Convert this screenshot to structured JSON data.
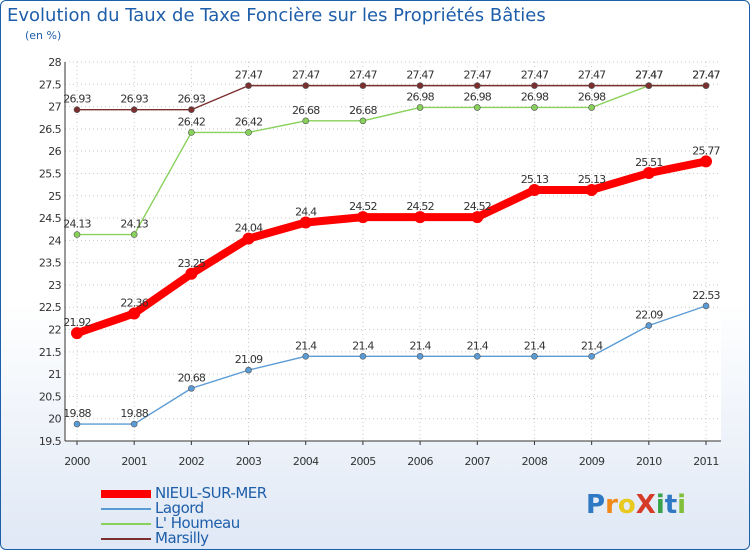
{
  "title": "Evolution du Taux de Taxe Foncière sur les Propriétés Bâties",
  "subtitle": "(en %)",
  "logo": {
    "text": "ProXiti",
    "letters": [
      {
        "ch": "P",
        "color": "#2f78c4"
      },
      {
        "ch": "r",
        "color": "#f08a1c"
      },
      {
        "ch": "o",
        "color": "#e8c91f"
      },
      {
        "ch": "X",
        "color": "#d63b2a"
      },
      {
        "ch": "i",
        "color": "#3aa34a"
      },
      {
        "ch": "t",
        "color": "#2f78c4"
      },
      {
        "ch": "i",
        "color": "#7fbf3a"
      }
    ]
  },
  "chart_data": {
    "type": "line",
    "title": "Evolution du Taux de Taxe Foncière sur les Propriétés Bâties",
    "ylabel": "(en %)",
    "xlabel": "",
    "x": [
      "2000",
      "2001",
      "2002",
      "2003",
      "2004",
      "2005",
      "2006",
      "2007",
      "2008",
      "2009",
      "2010",
      "2011"
    ],
    "ylim": [
      19.5,
      28
    ],
    "yticks": [
      "19.5",
      "20",
      "20.5",
      "21",
      "21.5",
      "22",
      "22.5",
      "23",
      "23.5",
      "24",
      "24.5",
      "25",
      "25.5",
      "26",
      "26.5",
      "27",
      "27.5",
      "28"
    ],
    "grid": true,
    "legend_position": "bottom-left",
    "series": [
      {
        "name": "NIEUL-SUR-MER",
        "color": "#ff0000",
        "emphasis": true,
        "values": [
          21.92,
          22.36,
          23.25,
          24.04,
          24.4,
          24.52,
          24.52,
          24.52,
          25.13,
          25.13,
          25.51,
          25.77
        ],
        "labels": [
          "21.92",
          "22.36",
          "23.25",
          "24.04",
          "24.4",
          "24.52",
          "24.52",
          "24.52",
          "25.13",
          "25.13",
          "25.51",
          "25.77"
        ]
      },
      {
        "name": "Lagord",
        "color": "#5b9bd5",
        "emphasis": false,
        "values": [
          19.88,
          19.88,
          20.68,
          21.09,
          21.4,
          21.4,
          21.4,
          21.4,
          21.4,
          21.4,
          22.09,
          22.53
        ],
        "labels": [
          "19.88",
          "19.88",
          "20.68",
          "21.09",
          "21.4",
          "21.4",
          "21.4",
          "21.4",
          "21.4",
          "21.4",
          "22.09",
          "22.53"
        ]
      },
      {
        "name": "L' Houmeau",
        "color": "#88d15a",
        "emphasis": false,
        "values": [
          24.13,
          24.13,
          26.42,
          26.42,
          26.68,
          26.68,
          26.98,
          26.98,
          26.98,
          26.98,
          27.47,
          27.47
        ],
        "labels": [
          "24.13",
          "24.13",
          "26.42",
          "26.42",
          "26.68",
          "26.68",
          "26.98",
          "26.98",
          "26.98",
          "26.98",
          "27.47",
          "27.47"
        ]
      },
      {
        "name": "Marsilly",
        "color": "#7b2f2f",
        "emphasis": false,
        "values": [
          26.93,
          26.93,
          26.93,
          27.47,
          27.47,
          27.47,
          27.47,
          27.47,
          27.47,
          27.47,
          27.47,
          27.47
        ],
        "labels": [
          "26.93",
          "26.93",
          "26.93",
          "27.47",
          "27.47",
          "27.47",
          "27.47",
          "27.47",
          "27.47",
          "27.47",
          "27.47",
          "27.47"
        ]
      }
    ]
  }
}
